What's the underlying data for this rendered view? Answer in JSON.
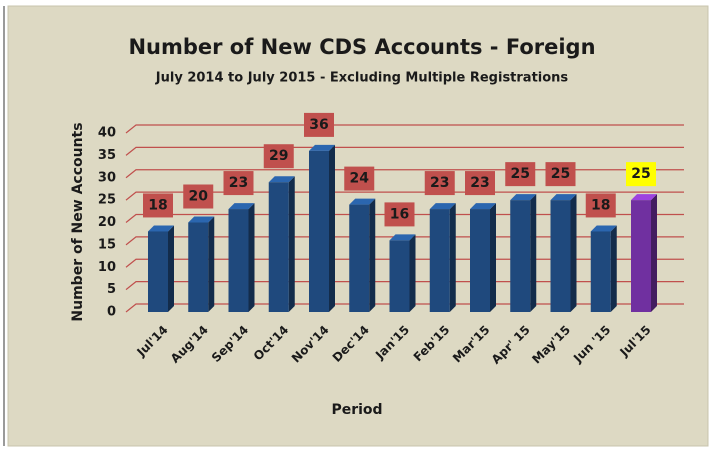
{
  "chart_data": {
    "type": "bar",
    "title": "Number of New CDS Accounts - Foreign",
    "subtitle": "July 2014 to July 2015 - Excluding Multiple Registrations",
    "y_label": "Number of New Accounts",
    "x_label": "Period",
    "categories": [
      "Jul'14",
      "Aug'14",
      "Sep'14",
      "Oct'14",
      "Nov'14",
      "Dec'14",
      "Jan'15",
      "Feb'15",
      "Mar'15",
      "Apr' 15",
      "May'15",
      "Jun '15",
      "Jul'15"
    ],
    "values": [
      18,
      20,
      23,
      29,
      36,
      24,
      16,
      23,
      23,
      25,
      25,
      18,
      25
    ],
    "colors": [
      "#1f497d",
      "#1f497d",
      "#1f497d",
      "#1f497d",
      "#1f497d",
      "#1f497d",
      "#1f497d",
      "#1f497d",
      "#1f497d",
      "#1f497d",
      "#1f497d",
      "#1f497d",
      "#7030a0"
    ],
    "label_colors": [
      "#c0504d",
      "#c0504d",
      "#c0504d",
      "#c0504d",
      "#c0504d",
      "#c0504d",
      "#c0504d",
      "#c0504d",
      "#c0504d",
      "#c0504d",
      "#c0504d",
      "#c0504d",
      "#ffff00"
    ],
    "ylim": [
      0,
      40
    ],
    "yticks": [
      0,
      5,
      10,
      15,
      20,
      25,
      30,
      35,
      40
    ],
    "grid": true,
    "grid_color": "#c0504d"
  }
}
